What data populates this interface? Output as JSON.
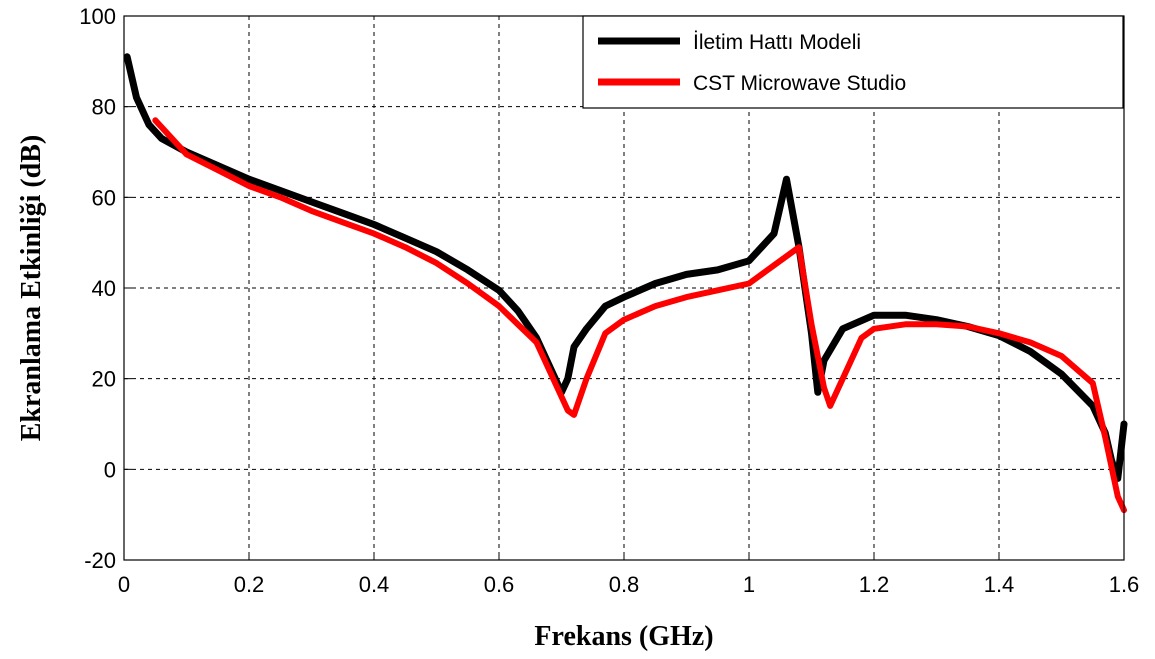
{
  "chart_data": {
    "type": "line",
    "title": "",
    "xlabel": "Frekans (GHz)",
    "ylabel": "Ekranlama Etkinliği (dB)",
    "xlim": [
      0,
      1.6
    ],
    "ylim": [
      -20,
      100
    ],
    "xticks": [
      0,
      0.2,
      0.4,
      0.6,
      0.8,
      1,
      1.2,
      1.4,
      1.6
    ],
    "xtick_labels": [
      "0",
      "0.2",
      "0.4",
      "0.6",
      "0.8",
      "1",
      "1.2",
      "1.4",
      "1.6"
    ],
    "yticks": [
      -20,
      0,
      20,
      40,
      60,
      80,
      100
    ],
    "ytick_labels": [
      "-20",
      "0",
      "20",
      "40",
      "60",
      "80",
      "100"
    ],
    "grid": true,
    "legend_position": "top-right",
    "series": [
      {
        "name": "İletim Hattı Modeli",
        "color": "#000000",
        "x": [
          0.005,
          0.02,
          0.04,
          0.06,
          0.1,
          0.15,
          0.2,
          0.25,
          0.3,
          0.35,
          0.4,
          0.45,
          0.5,
          0.55,
          0.6,
          0.63,
          0.66,
          0.68,
          0.7,
          0.71,
          0.72,
          0.74,
          0.77,
          0.8,
          0.85,
          0.9,
          0.95,
          1.0,
          1.04,
          1.06,
          1.08,
          1.1,
          1.11,
          1.12,
          1.15,
          1.2,
          1.25,
          1.3,
          1.35,
          1.4,
          1.45,
          1.5,
          1.55,
          1.57,
          1.58,
          1.59,
          1.6
        ],
        "y": [
          91,
          82,
          76,
          73,
          70,
          67,
          64,
          61.5,
          59,
          56.5,
          54,
          51,
          48,
          44,
          39.5,
          35,
          29,
          23,
          17,
          20,
          27,
          31,
          36,
          38,
          41,
          43,
          44,
          46,
          52,
          64,
          49,
          30,
          17,
          24,
          31,
          34,
          34,
          33,
          31.5,
          29.5,
          26,
          21,
          14,
          8,
          2,
          -2,
          10
        ]
      },
      {
        "name": "CST Microwave Studio",
        "color": "#ff0000",
        "x": [
          0.05,
          0.1,
          0.15,
          0.2,
          0.25,
          0.3,
          0.35,
          0.4,
          0.45,
          0.5,
          0.55,
          0.6,
          0.63,
          0.66,
          0.69,
          0.71,
          0.72,
          0.74,
          0.77,
          0.8,
          0.85,
          0.9,
          0.95,
          1.0,
          1.04,
          1.08,
          1.1,
          1.12,
          1.13,
          1.15,
          1.18,
          1.2,
          1.25,
          1.3,
          1.35,
          1.4,
          1.45,
          1.5,
          1.55,
          1.57,
          1.59,
          1.6
        ],
        "y": [
          77,
          69.5,
          66,
          62.5,
          60,
          57,
          54.5,
          52,
          49,
          45.5,
          41,
          36,
          32,
          28,
          19,
          13,
          12,
          20,
          30,
          33,
          36,
          38,
          39.5,
          41,
          45,
          49,
          32,
          18,
          14,
          20,
          29,
          31,
          32,
          32,
          31.5,
          30,
          28,
          25,
          19,
          7,
          -6,
          -9
        ]
      }
    ]
  }
}
